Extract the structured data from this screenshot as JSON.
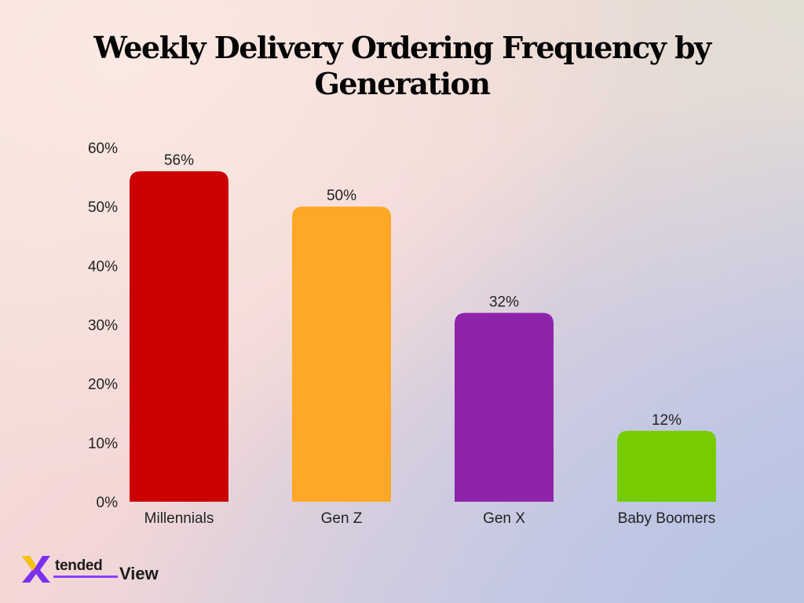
{
  "chart_data": {
    "type": "bar",
    "title": "Weekly Delivery Ordering Frequency by Generation",
    "categories": [
      "Millennials",
      "Gen Z",
      "Gen X",
      "Baby Boomers"
    ],
    "values": [
      56,
      50,
      32,
      12
    ],
    "value_labels": [
      "56%",
      "50%",
      "32%",
      "12%"
    ],
    "colors": [
      "#cc0000",
      "#ffa726",
      "#8e24aa",
      "#76cc00"
    ],
    "ylim": [
      0,
      60
    ],
    "yticks": [
      0,
      10,
      20,
      30,
      40,
      50,
      60
    ],
    "ytick_labels": [
      "0%",
      "10%",
      "20%",
      "30%",
      "40%",
      "50%",
      "60%"
    ],
    "xlabel": "",
    "ylabel": "",
    "grid": false,
    "legend": "none"
  },
  "logo": {
    "text_a": "tended",
    "text_b": "View",
    "colors": {
      "x_purple": "#7b2ff0",
      "x_yellow": "#f5c400",
      "underline": "#8a3ffc"
    }
  }
}
